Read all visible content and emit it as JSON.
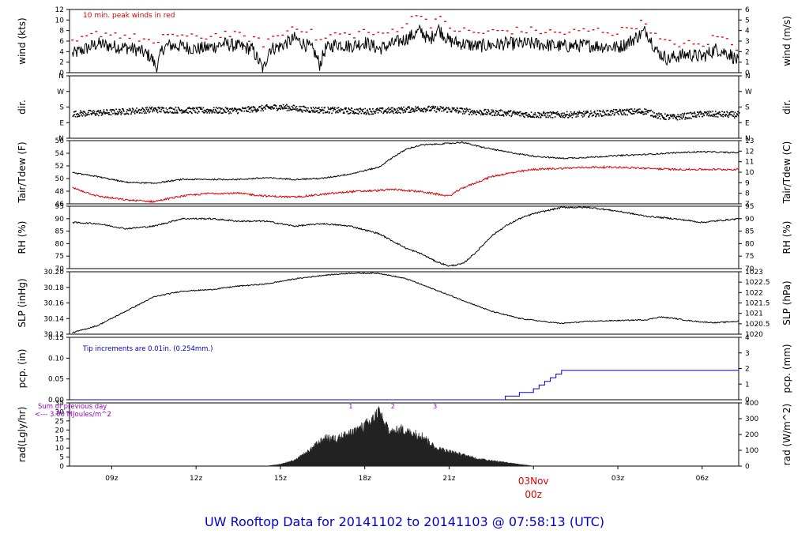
{
  "title": "UW Rooftop Data for 20141102  to  20141103 @ 07:58:13  (UTC)",
  "colors": {
    "trace": "#000000",
    "red": "#dd0000",
    "blue": "#0000cc",
    "purple": "#9900cc",
    "fill": "#222222"
  },
  "x_axis": {
    "ticks": [
      "09z",
      "12z",
      "15z",
      "18z",
      "21z",
      "03z",
      "06z"
    ],
    "day_label": "03Nov",
    "day_hour": "00z",
    "x_range_hours": [
      7.5,
      31.3
    ]
  },
  "chart_data": [
    {
      "type": "line",
      "id": "wind",
      "ylabel_left": "wind (kts)",
      "ylabel_right": "wind (m/s)",
      "left_ticks": [
        "0",
        "2",
        "4",
        "6",
        "8",
        "10",
        "12"
      ],
      "right_ticks": [
        "0",
        "1",
        "2",
        "3",
        "4",
        "5",
        "6"
      ],
      "ylim": [
        0,
        12
      ],
      "annotation": "10 min. peak winds in red",
      "x_hours": [
        7.6,
        8.5,
        9.0,
        9.5,
        10.0,
        10.4,
        10.6,
        10.8,
        11.0,
        11.5,
        12.0,
        12.5,
        13.0,
        13.5,
        14.0,
        14.2,
        14.4,
        14.6,
        15.0,
        15.5,
        16.0,
        16.2,
        16.4,
        16.6,
        17.0,
        17.5,
        18.0,
        18.5,
        19.0,
        19.5,
        20.0,
        20.3,
        20.6,
        21.0,
        21.5,
        22.0,
        23.0,
        24.0,
        25.0,
        26.0,
        26.5,
        27.0,
        27.3,
        27.6,
        28.0,
        28.4,
        28.8,
        29.0,
        29.5,
        30.0,
        30.5,
        31.0,
        31.3
      ],
      "avg_wind": [
        3.5,
        5.5,
        5.0,
        4.8,
        4.2,
        3.0,
        0.8,
        4.5,
        5.2,
        5.0,
        4.5,
        4.8,
        5.5,
        5.0,
        4.5,
        2.5,
        0.5,
        4.5,
        5.0,
        6.5,
        5.0,
        4.0,
        1.5,
        4.5,
        5.5,
        5.0,
        5.8,
        4.5,
        5.5,
        6.5,
        8.0,
        6.0,
        8.5,
        6.0,
        5.5,
        5.0,
        5.5,
        5.5,
        5.0,
        5.2,
        5.0,
        4.8,
        5.5,
        6.5,
        8.0,
        4.0,
        2.5,
        3.0,
        3.5,
        3.0,
        4.5,
        3.5,
        2.0
      ],
      "peak_wind": [
        5.5,
        7.5,
        7.5,
        7.0,
        6.5,
        6.0,
        4.5,
        6.5,
        7.5,
        7.0,
        6.5,
        7.0,
        7.5,
        7.0,
        6.5,
        6.0,
        5.5,
        6.5,
        7.0,
        9.0,
        8.0,
        7.0,
        6.0,
        6.5,
        7.5,
        7.0,
        8.0,
        7.0,
        8.0,
        9.5,
        11.5,
        9.0,
        10.5,
        8.5,
        8.0,
        7.5,
        8.0,
        8.0,
        7.5,
        8.0,
        8.0,
        7.5,
        8.5,
        9.0,
        9.5,
        6.5,
        5.5,
        5.5,
        5.5,
        5.0,
        7.0,
        6.0,
        4.5
      ]
    },
    {
      "type": "scatter",
      "id": "dir",
      "ylabel_left": "dir.",
      "ylabel_right": "dir.",
      "left_ticks": [
        "N",
        "E",
        "S",
        "W",
        "N"
      ],
      "right_ticks": [
        "N",
        "E",
        "S",
        "W",
        "N"
      ],
      "ylim": [
        0,
        360
      ],
      "x_hours": [
        7.6,
        9.0,
        10.5,
        12.0,
        13.5,
        14.5,
        15.0,
        16.0,
        17.0,
        18.0,
        19.0,
        20.0,
        21.0,
        22.0,
        23.0,
        24.0,
        25.0,
        26.0,
        27.0,
        28.0,
        28.5,
        29.0,
        30.0,
        31.3
      ],
      "dir_deg": [
        140,
        150,
        165,
        160,
        160,
        175,
        180,
        165,
        160,
        155,
        160,
        170,
        165,
        150,
        145,
        135,
        135,
        140,
        150,
        155,
        125,
        120,
        140,
        135
      ]
    },
    {
      "type": "line",
      "id": "temp",
      "ylabel_left": "Tair/Tdew (F)",
      "ylabel_right": "Tair/Tdew (C)",
      "left_ticks": [
        "46",
        "48",
        "50",
        "52",
        "54",
        "56"
      ],
      "right_ticks": [
        "7",
        "8",
        "9",
        "10",
        "11",
        "12",
        "13"
      ],
      "ylim": [
        44.6,
        56
      ],
      "x_hours": [
        7.6,
        8.5,
        9.5,
        10.5,
        11.5,
        12.5,
        13.5,
        14.5,
        15.5,
        16.5,
        17.5,
        18.5,
        19.0,
        19.5,
        20.0,
        21.0,
        21.5,
        22.0,
        22.5,
        23.0,
        24.0,
        25.0,
        26.0,
        27.0,
        28.0,
        29.0,
        30.0,
        31.3
      ],
      "tair": [
        50.2,
        49.5,
        48.5,
        48.3,
        49.0,
        49.0,
        49.0,
        49.3,
        49.0,
        49.2,
        50.0,
        51.2,
        53.0,
        54.5,
        55.2,
        55.5,
        55.7,
        55.0,
        54.5,
        54.0,
        53.2,
        52.8,
        53.0,
        53.3,
        53.5,
        53.8,
        54.0,
        53.8
      ],
      "tdew": [
        47.5,
        46.0,
        45.3,
        45.0,
        46.0,
        46.5,
        46.5,
        46.0,
        45.8,
        46.3,
        46.8,
        47.0,
        47.2,
        47.0,
        46.8,
        46.0,
        47.5,
        48.5,
        49.5,
        50.0,
        50.8,
        51.0,
        51.2,
        51.2,
        51.0,
        50.8,
        50.8,
        50.8
      ],
      "series": [
        {
          "name": "Tair"
        },
        {
          "name": "Tdew"
        }
      ]
    },
    {
      "type": "line",
      "id": "rh",
      "ylabel_left": "RH (%)",
      "ylabel_right": "RH (%)",
      "left_ticks": [
        "70",
        "75",
        "80",
        "85",
        "90",
        "95"
      ],
      "right_ticks": [
        "70",
        "75",
        "80",
        "85",
        "90",
        "95"
      ],
      "ylim": [
        70,
        95
      ],
      "x_hours": [
        7.6,
        8.5,
        9.5,
        10.5,
        11.5,
        12.5,
        13.5,
        14.5,
        15.5,
        16.5,
        17.5,
        18.5,
        19.0,
        19.5,
        20.0,
        20.5,
        21.0,
        21.5,
        22.0,
        22.5,
        23.0,
        23.5,
        24.0,
        25.0,
        26.0,
        27.0,
        28.0,
        29.0,
        30.0,
        31.3
      ],
      "rh": [
        88.5,
        88,
        86,
        87,
        90,
        90,
        89,
        89,
        87,
        88,
        87,
        84,
        81,
        78,
        76,
        73,
        71,
        72,
        77,
        83,
        87,
        90,
        92,
        94.5,
        94.5,
        93,
        91,
        90,
        88.5,
        90
      ]
    },
    {
      "type": "line",
      "id": "slp",
      "ylabel_left": "SLP (inHg)",
      "ylabel_right": "SLP (hPa)",
      "left_ticks": [
        "30.12",
        "30.14",
        "30.16",
        "30.18",
        "30.20"
      ],
      "right_ticks": [
        "1020",
        "1020.5",
        "1021",
        "1021.5",
        "1022",
        "1022.5",
        "1023"
      ],
      "ylim": [
        30.118,
        30.205
      ],
      "x_hours": [
        7.6,
        8.5,
        9.5,
        10.5,
        11.5,
        12.5,
        13.5,
        14.5,
        15.5,
        16.5,
        17.5,
        18.5,
        19.5,
        20.5,
        21.5,
        22.5,
        23.5,
        24.5,
        25.0,
        26.0,
        27.0,
        28.0,
        28.5,
        29.0,
        29.5,
        30.0,
        30.5,
        31.3
      ],
      "slp": [
        30.12,
        30.13,
        30.15,
        30.17,
        30.178,
        30.18,
        30.185,
        30.188,
        30.195,
        30.2,
        30.203,
        30.203,
        30.195,
        30.18,
        30.165,
        30.15,
        30.14,
        30.135,
        30.133,
        30.136,
        30.137,
        30.138,
        30.142,
        30.14,
        30.137,
        30.135,
        30.134,
        30.136
      ]
    },
    {
      "type": "line",
      "id": "pcp",
      "ylabel_left": "pcp. (in)",
      "ylabel_right": "pcp. (mm)",
      "left_ticks": [
        "0.00",
        "0.05",
        "0.10",
        "0.15"
      ],
      "right_ticks": [
        "0",
        "1",
        "2",
        "3",
        "4"
      ],
      "ylim": [
        0,
        0.17
      ],
      "annotation": "Tip increments are 0.01in. (0.254mm.)",
      "x_hours": [
        7.6,
        22.5,
        23.0,
        23.5,
        24.0,
        24.2,
        24.4,
        24.6,
        24.8,
        25.0,
        31.3
      ],
      "pcp": [
        0.0,
        0.0,
        0.01,
        0.02,
        0.03,
        0.04,
        0.05,
        0.06,
        0.07,
        0.08,
        0.08
      ]
    },
    {
      "type": "area",
      "id": "rad",
      "ylabel_left": "rad(Lgly/hr)",
      "ylabel_right": "rad (W/m^2)",
      "left_ticks": [
        "0",
        "5",
        "10",
        "15",
        "20",
        "25",
        "30",
        "35"
      ],
      "right_ticks": [
        "0",
        "100",
        "200",
        "300",
        "400"
      ],
      "ylim": [
        0,
        35
      ],
      "annotation_line1": "Sum of previous day",
      "annotation_line2": "<--- 3.00 MJoules/m^2",
      "peak_labels": [
        "1",
        "2",
        "3"
      ],
      "peak_label_hours": [
        17.5,
        19.0,
        20.5
      ],
      "x_hours": [
        14.5,
        15.0,
        15.5,
        16.0,
        16.3,
        16.6,
        17.0,
        17.3,
        17.6,
        18.0,
        18.3,
        18.5,
        18.7,
        19.0,
        19.3,
        19.6,
        20.0,
        20.5,
        21.0,
        21.5,
        22.0,
        22.5,
        23.0,
        23.5,
        24.0
      ],
      "rad": [
        0,
        1,
        3,
        8,
        12,
        15,
        15,
        17,
        18,
        22,
        25,
        30,
        22,
        18,
        20,
        18,
        17,
        10,
        8,
        6,
        4,
        3,
        2,
        1,
        0
      ]
    }
  ]
}
